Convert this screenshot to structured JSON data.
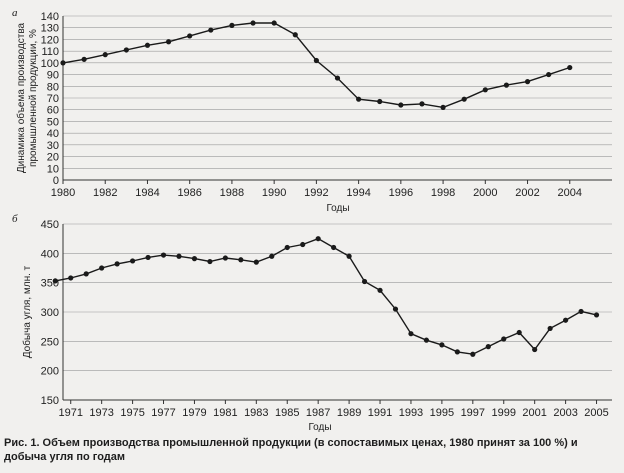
{
  "caption": "Рис. 1. Объем производства промышленной продукции (в сопоставимых ценах, 1980 принят за 100 %) и добыча угля по годам",
  "chart_data": [
    {
      "type": "line",
      "panel_label": "а",
      "xlabel": "Годы",
      "ylabel_lines": [
        "Динамика объема производства",
        "промышленной продукции, %"
      ],
      "ylim": [
        0,
        140
      ],
      "yticks": [
        0,
        10,
        20,
        30,
        40,
        50,
        60,
        70,
        80,
        90,
        100,
        110,
        120,
        130,
        140
      ],
      "xlim": [
        1980,
        2006
      ],
      "xticks": [
        1980,
        1982,
        1984,
        1986,
        1988,
        1990,
        1992,
        1994,
        1996,
        1998,
        2000,
        2002,
        2004
      ],
      "grid": "horizontal",
      "series": [
        {
          "x": [
            1980,
            1981,
            1982,
            1983,
            1984,
            1985,
            1986,
            1987,
            1988,
            1989,
            1990,
            1991,
            1992,
            1993,
            1994,
            1995,
            1996,
            1997,
            1998,
            1999,
            2000,
            2001,
            2002,
            2003,
            2004
          ],
          "values": [
            100,
            103,
            107,
            111,
            115,
            118,
            123,
            128,
            132,
            134,
            134,
            124,
            102,
            87,
            69,
            67,
            64,
            65,
            62,
            69,
            77,
            81,
            84,
            90,
            96
          ],
          "color": "#1a1a1a"
        }
      ]
    },
    {
      "type": "line",
      "panel_label": "б",
      "xlabel": "Годы",
      "ylabel": "Добыча угля, млн. т",
      "ylim": [
        150,
        450
      ],
      "yticks": [
        150,
        200,
        250,
        300,
        350,
        400,
        450
      ],
      "xlim": [
        1970.5,
        2006
      ],
      "xticks": [
        1971,
        1973,
        1975,
        1977,
        1979,
        1981,
        1983,
        1985,
        1987,
        1989,
        1991,
        1993,
        1995,
        1997,
        1999,
        2001,
        2003,
        2005
      ],
      "grid": "horizontal",
      "series": [
        {
          "x": [
            1970,
            1971,
            1972,
            1973,
            1974,
            1975,
            1976,
            1977,
            1978,
            1979,
            1980,
            1981,
            1982,
            1983,
            1984,
            1985,
            1986,
            1987,
            1988,
            1989,
            1990,
            1991,
            1992,
            1993,
            1994,
            1995,
            1996,
            1997,
            1998,
            1999,
            2000,
            2001,
            2002,
            2003,
            2004,
            2005
          ],
          "values": [
            353,
            358,
            365,
            375,
            382,
            387,
            393,
            397,
            395,
            391,
            386,
            392,
            389,
            385,
            395,
            410,
            415,
            425,
            410,
            395,
            352,
            337,
            305,
            263,
            252,
            244,
            232,
            228,
            241,
            254,
            265,
            236,
            272,
            286,
            301,
            295
          ],
          "color": "#1a1a1a"
        }
      ]
    }
  ]
}
